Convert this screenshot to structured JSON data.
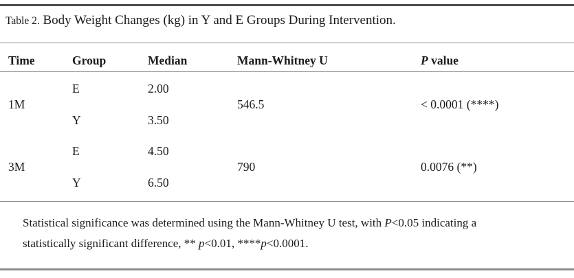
{
  "caption": {
    "label": "Table 2.",
    "title": "Body Weight Changes (kg) in Y and E Groups During Intervention."
  },
  "table": {
    "header": {
      "time": "Time",
      "group": "Group",
      "median": "Median",
      "mann_whitney_u": "Mann-Whitney U",
      "p_value_italic": "P",
      "p_value_rest": " value"
    },
    "rows": [
      {
        "time": "1M",
        "groups": [
          {
            "group": "E",
            "median": "2.00"
          },
          {
            "group": "Y",
            "median": "3.50"
          }
        ],
        "mann_whitney_u": "546.5",
        "p_value": "< 0.0001 (****)"
      },
      {
        "time": "3M",
        "groups": [
          {
            "group": "E",
            "median": "4.50"
          },
          {
            "group": "Y",
            "median": "6.50"
          }
        ],
        "mann_whitney_u": "790",
        "p_value": "0.0076 (**)"
      }
    ]
  },
  "footnote": {
    "segments": [
      {
        "text": "Statistical significance was determined using the Mann-Whitney U test, with ",
        "italic": false
      },
      {
        "text": "P",
        "italic": true
      },
      {
        "text": "<0.05 indicating a",
        "italic": false
      },
      {
        "br": true
      },
      {
        "text": "statistically significant difference, ** ",
        "italic": false
      },
      {
        "text": "p",
        "italic": true
      },
      {
        "text": "<0.01, ****",
        "italic": false
      },
      {
        "text": "p",
        "italic": true
      },
      {
        "text": "<0.0001.",
        "italic": false
      }
    ]
  },
  "colors": {
    "text": "#1c1c1c",
    "rule_dark": "#4c4c4c",
    "rule_light": "#8f8f8f"
  }
}
